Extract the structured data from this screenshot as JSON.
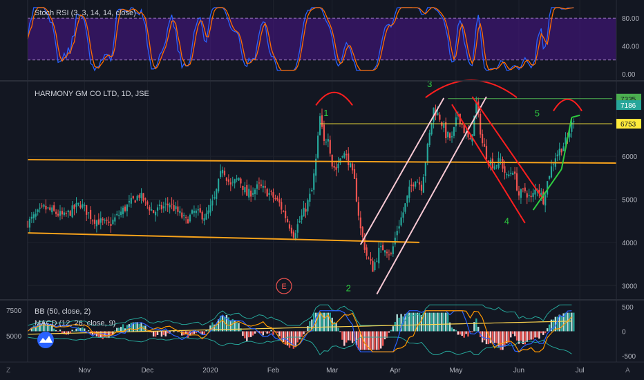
{
  "panes": {
    "stoch": {
      "legend": "Stoch RSI (3, 3, 14, 14, close)",
      "ticks": [
        "80.00",
        "40.00",
        "0.00"
      ],
      "tick_values": [
        80,
        40,
        0
      ],
      "band": [
        20,
        80
      ],
      "range": [
        -8,
        102
      ]
    },
    "price": {
      "legend": "HARMONY GM CO LTD, 1D, JSE",
      "ticks": [
        "6000",
        "5000",
        "4000",
        "3000"
      ],
      "tick_values": [
        6000,
        5000,
        4000,
        3000
      ],
      "range": [
        2700,
        7700
      ],
      "price_labels": [
        {
          "text": "7335",
          "value": 7335,
          "color": "#4caf50",
          "text_color": "#131722"
        },
        {
          "text": "7186",
          "value": 7186,
          "color": "#26a69a",
          "text_color": "#ffffff"
        },
        {
          "text": "6753",
          "value": 6753,
          "color": "#ffeb3b",
          "text_color": "#131722"
        }
      ],
      "wave_labels": [
        "1",
        "2",
        "3",
        "4",
        "5"
      ],
      "event_icon": "E"
    },
    "bb": {
      "legend": "BB (50, close, 2)",
      "left_ticks": [
        "7500",
        "5000"
      ],
      "left_tick_values": [
        7500,
        5000
      ]
    },
    "macd": {
      "legend": "MACD (12, 26, close, 9)",
      "ticks": [
        "500",
        "0",
        "-500"
      ],
      "tick_values": [
        500,
        0,
        -500
      ],
      "range": [
        -600,
        600
      ]
    }
  },
  "time_axis": {
    "labels": [
      "Nov",
      "Dec",
      "2020",
      "Feb",
      "Mar",
      "Apr",
      "May",
      "Jun",
      "Jul"
    ],
    "label_days": [
      28,
      59,
      90,
      121,
      150,
      181,
      211,
      242,
      272
    ]
  },
  "colors": {
    "up": "#26a69a",
    "down": "#ef5350",
    "stoch_k": "#2962ff",
    "stoch_d": "#ff6d00",
    "band_fill": "#4a148c",
    "channel_orange": "#f7a21b",
    "level_yellow": "#ffeb3b",
    "level_green": "#4caf50",
    "arc_red": "#ff1f1f",
    "wave_green": "#2ecc40",
    "pink_channel": "#f8c9d4",
    "bb_line": "#26a69a",
    "macd_line": "#2962ff",
    "signal_line": "#ff9800",
    "ma_yellow": "#ffd54f"
  },
  "icons": [
    "tradingview-logo-icon",
    "timezone-icon",
    "auto-scale-icon"
  ],
  "chart_data": {
    "type": "candlestick",
    "title": "HARMONY GM CO LTD, 1D, JSE",
    "x_axis": [
      "Nov",
      "Dec",
      "2020",
      "Feb",
      "Mar",
      "Apr",
      "May",
      "Jun",
      "Jul"
    ],
    "ylim": [
      2700,
      7700
    ],
    "close_anchors": {
      "x_day": [
        0,
        8,
        18,
        26,
        32,
        40,
        48,
        55,
        62,
        70,
        78,
        82,
        88,
        92,
        96,
        100,
        104,
        108,
        114,
        120,
        124,
        128,
        131,
        134,
        137,
        140,
        142,
        144,
        146,
        148,
        150,
        152,
        155,
        158,
        161,
        164,
        167,
        170,
        173,
        176,
        179,
        182,
        185,
        188,
        191,
        194,
        197,
        200,
        203,
        206,
        209,
        212,
        215,
        218,
        221,
        224,
        227,
        230,
        233,
        236,
        239,
        242,
        245,
        248,
        251,
        254,
        257,
        260,
        263,
        266,
        269
      ],
      "close": [
        4450,
        4800,
        4600,
        4900,
        4550,
        4400,
        4800,
        5100,
        4700,
        4900,
        4500,
        4700,
        4600,
        5000,
        5750,
        5300,
        5500,
        5100,
        5300,
        5100,
        4900,
        4500,
        4200,
        4500,
        4800,
        5200,
        5900,
        6900,
        6300,
        6500,
        5800,
        5700,
        6100,
        5900,
        5400,
        4300,
        3700,
        3400,
        3800,
        3900,
        3700,
        4300,
        4700,
        5200,
        5500,
        5300,
        6200,
        7100,
        6900,
        6500,
        6400,
        7000,
        6600,
        6300,
        7200,
        6300,
        5900,
        5800,
        5900,
        5500,
        5700,
        5100,
        5200,
        5000,
        5300,
        5000,
        5600,
        6000,
        6200,
        6400,
        6900
      ]
    },
    "stoch_rsi": {
      "k_min": 0,
      "k_max": 100,
      "band_lower": 20,
      "band_upper": 80,
      "last_value": 95
    },
    "levels": [
      {
        "value": 7335,
        "color": "green"
      },
      {
        "value": 6753,
        "color": "yellow"
      }
    ],
    "macd": {
      "last": 200,
      "range": [
        -500,
        500
      ]
    }
  }
}
